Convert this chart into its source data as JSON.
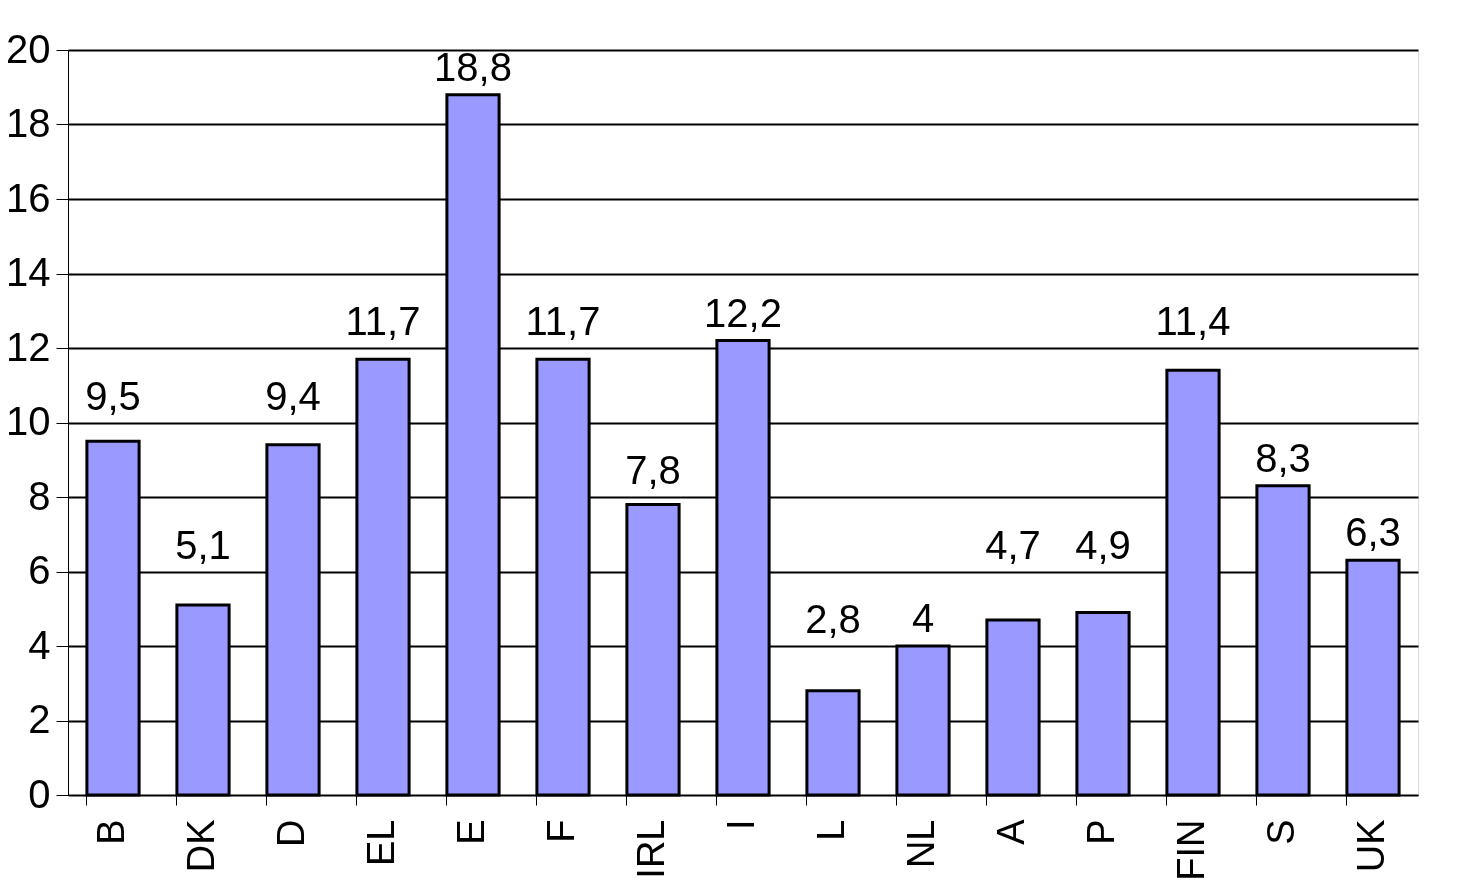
{
  "chart_data": {
    "type": "bar",
    "categories": [
      "B",
      "DK",
      "D",
      "EL",
      "E",
      "F",
      "IRL",
      "I",
      "L",
      "NL",
      "A",
      "P",
      "FIN",
      "S",
      "UK"
    ],
    "values": [
      9.5,
      5.1,
      9.4,
      11.7,
      18.8,
      11.7,
      7.8,
      12.2,
      2.8,
      4.0,
      4.7,
      4.9,
      11.4,
      8.3,
      6.3
    ],
    "value_labels": [
      "9,5",
      "5,1",
      "9,4",
      "11,7",
      "18,8",
      "11,7",
      "7,8",
      "12,2",
      "2,8",
      "4",
      "4,7",
      "4,9",
      "11,4",
      "8,3",
      "6,3"
    ],
    "color": "#9999ff",
    "ylim": [
      0,
      20
    ],
    "yticks": [
      0,
      2,
      4,
      6,
      8,
      10,
      12,
      14,
      16,
      18,
      20
    ],
    "grid": "y"
  }
}
